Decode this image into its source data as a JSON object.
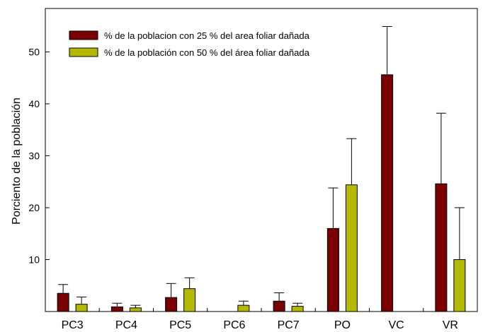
{
  "chart_data": {
    "type": "bar",
    "ylabel": "Porciento de la población",
    "ylim": [
      0,
      57
    ],
    "yticks": [
      10,
      20,
      30,
      40,
      50
    ],
    "categories": [
      "PC3",
      "PC4",
      "PC5",
      "PC6",
      "PC7",
      "PO",
      "VC",
      "VR"
    ],
    "series": [
      {
        "name": "% de la poblacion con 25 % del area foliar dañada",
        "color": "#7a0000",
        "values": [
          3.5,
          0.9,
          2.7,
          0,
          2.0,
          16.0,
          45.6,
          24.6
        ],
        "errors": [
          1.7,
          0.7,
          2.7,
          0,
          1.6,
          7.8,
          9.3,
          13.6
        ]
      },
      {
        "name": "% de la población con 50 % del área foliar dañada",
        "color": "#b5b800",
        "values": [
          1.4,
          0.7,
          4.4,
          1.2,
          1.0,
          24.4,
          0,
          10.0
        ],
        "errors": [
          1.4,
          0.5,
          2.1,
          0.8,
          0.6,
          8.9,
          0,
          10.0
        ]
      }
    ],
    "legend": "top-left"
  }
}
